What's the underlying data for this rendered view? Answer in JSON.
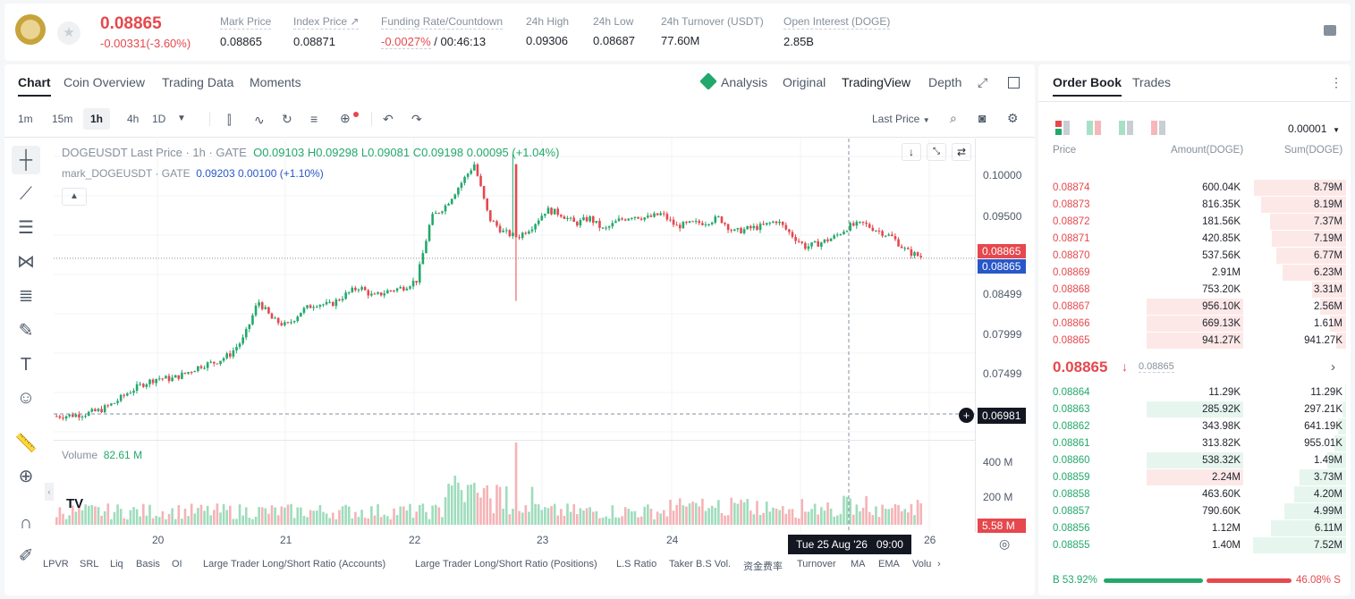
{
  "ticker": {
    "last_price": "0.08865",
    "change": "-0.00331(-3.60%)",
    "stats": [
      {
        "label": "Mark Price",
        "value": "0.08865"
      },
      {
        "label": "Index Price ↗",
        "value": "0.08871"
      },
      {
        "label": "Funding Rate/Countdown",
        "value_red": "-0.0027%",
        "value": " / 00:46:13"
      },
      {
        "label": "24h High",
        "value": "0.09306"
      },
      {
        "label": "24h Low",
        "value": "0.08687"
      },
      {
        "label": "24h Turnover (USDT)",
        "value": "77.60M"
      },
      {
        "label": "Open Interest (DOGE)",
        "value": "2.85B"
      }
    ]
  },
  "chart_tabs": [
    "Chart",
    "Coin Overview",
    "Trading Data",
    "Moments"
  ],
  "view_tabs": {
    "analysis": "Analysis",
    "original": "Original",
    "tradingview": "TradingView",
    "depth": "Depth"
  },
  "timeframes": [
    "1m",
    "15m",
    "1h",
    "4h",
    "1D"
  ],
  "price_type": "Last Price",
  "legend": {
    "symbol": "DOGEUSDT Last Price · 1h · GATE",
    "o": "O0.09103",
    "h": "H0.09298",
    "l": "L0.09081",
    "c": "C0.09198",
    "chg": "0.00095 (+1.04%)",
    "mark": "mark_DOGEUSDT · GATE",
    "mark_val": "0.09203",
    "mark_chg": "0.00100 (+1.10%)"
  },
  "price_axis": [
    "0.10000",
    "0.09500",
    "0.08999",
    "0.08499",
    "0.07999",
    "0.07499"
  ],
  "price_tags": {
    "last": "0.08865",
    "mark": "0.08865",
    "cursor": "0.06981"
  },
  "volume": {
    "label": "Volume",
    "value": "82.61 M",
    "axis": [
      "400 M",
      "200 M"
    ],
    "tag": "5.58 M"
  },
  "time_axis": [
    "20",
    "21",
    "22",
    "23",
    "24",
    "26"
  ],
  "cursor_time": "Tue 25 Aug '26   09:00",
  "indicators": [
    "LPVR",
    "SRL",
    "Liq",
    "Basis",
    "OI",
    "Large Trader Long/Short Ratio (Accounts)",
    "Large Trader Long/Short Ratio (Positions)",
    "L.S Ratio",
    "Taker B.S Vol.",
    "资金费率",
    "Turnover",
    "MA",
    "EMA",
    "Volu"
  ],
  "chart_data": {
    "type": "candlestick",
    "y_range": [
      0.0675,
      0.102
    ],
    "close_path": [
      0.0696,
      0.0697,
      0.0699,
      0.0703,
      0.0712,
      0.0725,
      0.0735,
      0.0742,
      0.0741,
      0.0748,
      0.0757,
      0.0761,
      0.077,
      0.079,
      0.0835,
      0.0812,
      0.0805,
      0.0823,
      0.0832,
      0.083,
      0.0842,
      0.0852,
      0.084,
      0.0847,
      0.0851,
      0.086,
      0.0935,
      0.095,
      0.0975,
      0.1,
      0.0935,
      0.0918,
      0.0912,
      0.0925,
      0.0945,
      0.094,
      0.0928,
      0.0935,
      0.092,
      0.0932,
      0.0938,
      0.0935,
      0.094,
      0.0925,
      0.0928,
      0.093,
      0.0935,
      0.0918,
      0.0922,
      0.0925,
      0.0932,
      0.0915,
      0.09,
      0.0905,
      0.0912,
      0.0925,
      0.0928,
      0.092,
      0.0912,
      0.0895,
      0.0888
    ]
  },
  "orderbook": {
    "tabs": [
      "Order Book",
      "Trades"
    ],
    "precision": "0.00001",
    "headers": [
      "Price",
      "Amount(DOGE)",
      "Sum(DOGE)"
    ],
    "asks": [
      {
        "price": "0.08874",
        "amount": "600.04K",
        "sum": "8.79M",
        "sum_frac": 0.95,
        "amt_frac": 0
      },
      {
        "price": "0.08873",
        "amount": "816.35K",
        "sum": "8.19M",
        "sum_frac": 0.88,
        "amt_frac": 0
      },
      {
        "price": "0.08872",
        "amount": "181.56K",
        "sum": "7.37M",
        "sum_frac": 0.79,
        "amt_frac": 0
      },
      {
        "price": "0.08871",
        "amount": "420.85K",
        "sum": "7.19M",
        "sum_frac": 0.77,
        "amt_frac": 0
      },
      {
        "price": "0.08870",
        "amount": "537.56K",
        "sum": "6.77M",
        "sum_frac": 0.72,
        "amt_frac": 0
      },
      {
        "price": "0.08869",
        "amount": "2.91M",
        "sum": "6.23M",
        "sum_frac": 0.66,
        "amt_frac": 0
      },
      {
        "price": "0.08868",
        "amount": "753.20K",
        "sum": "3.31M",
        "sum_frac": 0.35,
        "amt_frac": 0
      },
      {
        "price": "0.08867",
        "amount": "956.10K",
        "sum": "2.56M",
        "sum_frac": 0.27,
        "amt_frac": 0.32
      },
      {
        "price": "0.08866",
        "amount": "669.13K",
        "sum": "1.61M",
        "sum_frac": 0.17,
        "amt_frac": 0.32
      },
      {
        "price": "0.08865",
        "amount": "941.27K",
        "sum": "941.27K",
        "sum_frac": 0.1,
        "amt_frac": 0.32
      }
    ],
    "mid_price": "0.08865",
    "mid_mark": "0.08865",
    "bids": [
      {
        "price": "0.08864",
        "amount": "11.29K",
        "sum": "11.29K",
        "sum_frac": 0.01,
        "amt_frac": 0
      },
      {
        "price": "0.08863",
        "amount": "285.92K",
        "sum": "297.21K",
        "sum_frac": 0.04,
        "amt_frac": 0.32
      },
      {
        "price": "0.08862",
        "amount": "343.98K",
        "sum": "641.19K",
        "sum_frac": 0.08,
        "amt_frac": 0
      },
      {
        "price": "0.08861",
        "amount": "313.82K",
        "sum": "955.01K",
        "sum_frac": 0.12,
        "amt_frac": 0
      },
      {
        "price": "0.08860",
        "amount": "538.32K",
        "sum": "1.49M",
        "sum_frac": 0.19,
        "amt_frac": 0.32
      },
      {
        "price": "0.08859",
        "amount": "2.24M",
        "sum": "3.73M",
        "sum_frac": 0.48,
        "amt_frac": 0.32,
        "amt_red": true
      },
      {
        "price": "0.08858",
        "amount": "463.60K",
        "sum": "4.20M",
        "sum_frac": 0.54,
        "amt_frac": 0
      },
      {
        "price": "0.08857",
        "amount": "790.60K",
        "sum": "4.99M",
        "sum_frac": 0.64,
        "amt_frac": 0
      },
      {
        "price": "0.08856",
        "amount": "1.12M",
        "sum": "6.11M",
        "sum_frac": 0.78,
        "amt_frac": 0
      },
      {
        "price": "0.08855",
        "amount": "1.40M",
        "sum": "7.52M",
        "sum_frac": 0.96,
        "amt_frac": 0
      }
    ],
    "buy_ratio": "B 53.92%",
    "sell_ratio": "46.08% S",
    "buy_frac": 0.5392
  },
  "colors": {
    "up": "#23a86b",
    "down": "#e5484d",
    "mark": "#2857c9"
  }
}
